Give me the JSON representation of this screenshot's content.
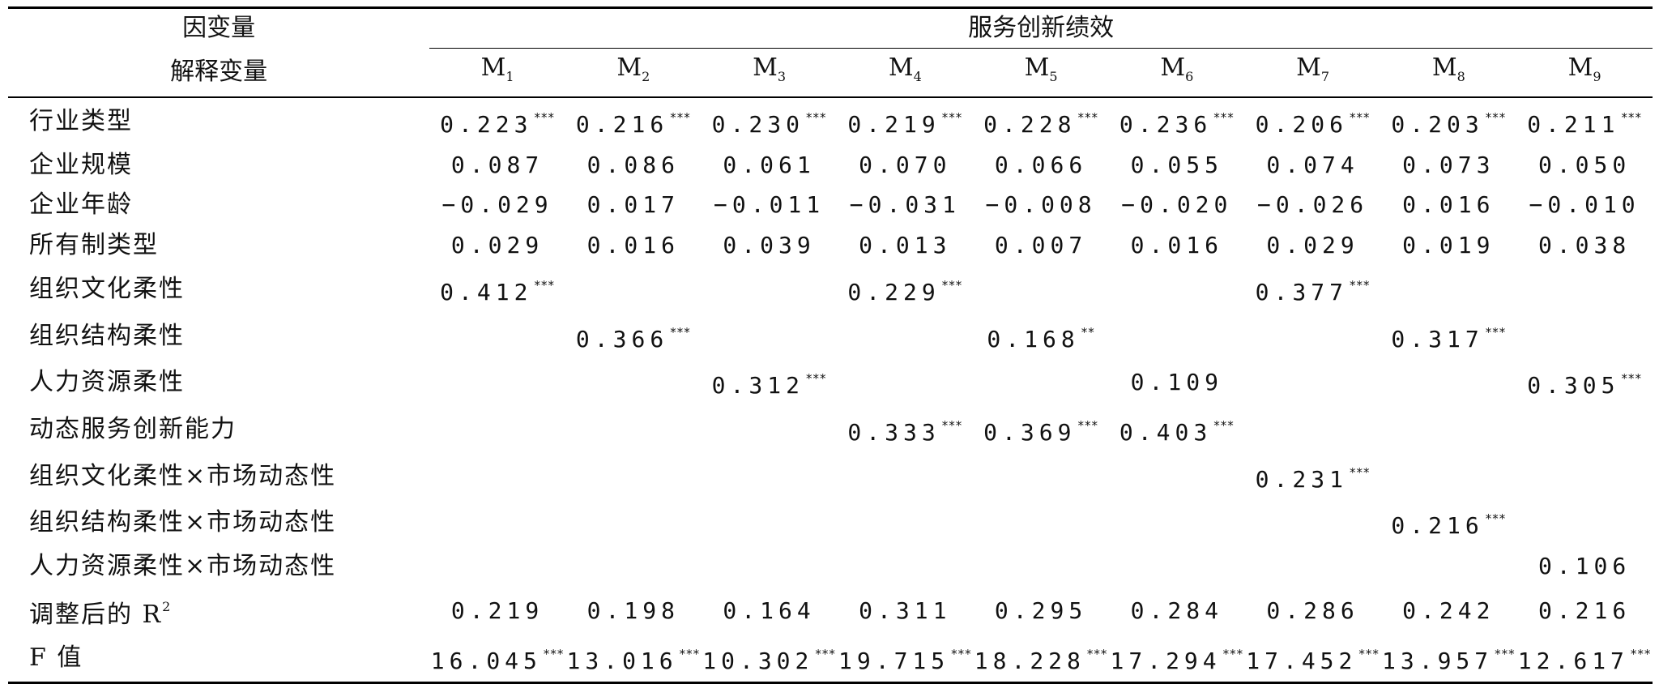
{
  "header": {
    "dependent_label": "因变量",
    "dependent_value": "服务创新绩效",
    "explanatory_label": "解释变量",
    "models": [
      {
        "name": "M",
        "sub": "1"
      },
      {
        "name": "M",
        "sub": "2"
      },
      {
        "name": "M",
        "sub": "3"
      },
      {
        "name": "M",
        "sub": "4"
      },
      {
        "name": "M",
        "sub": "5"
      },
      {
        "name": "M",
        "sub": "6"
      },
      {
        "name": "M",
        "sub": "7"
      },
      {
        "name": "M",
        "sub": "8"
      },
      {
        "name": "M",
        "sub": "9"
      }
    ]
  },
  "rows": [
    {
      "label": "行业类型",
      "cells": [
        {
          "v": "0.223",
          "sig": "***"
        },
        {
          "v": "0.216",
          "sig": "***"
        },
        {
          "v": "0.230",
          "sig": "***"
        },
        {
          "v": "0.219",
          "sig": "***"
        },
        {
          "v": "0.228",
          "sig": "***"
        },
        {
          "v": "0.236",
          "sig": "***"
        },
        {
          "v": "0.206",
          "sig": "***"
        },
        {
          "v": "0.203",
          "sig": "***"
        },
        {
          "v": "0.211",
          "sig": "***"
        }
      ]
    },
    {
      "label": "企业规模",
      "cells": [
        {
          "v": "0.087",
          "sig": ""
        },
        {
          "v": "0.086",
          "sig": ""
        },
        {
          "v": "0.061",
          "sig": ""
        },
        {
          "v": "0.070",
          "sig": ""
        },
        {
          "v": "0.066",
          "sig": ""
        },
        {
          "v": "0.055",
          "sig": ""
        },
        {
          "v": "0.074",
          "sig": ""
        },
        {
          "v": "0.073",
          "sig": ""
        },
        {
          "v": "0.050",
          "sig": ""
        }
      ]
    },
    {
      "label": "企业年龄",
      "cells": [
        {
          "v": "−0.029",
          "sig": ""
        },
        {
          "v": "0.017",
          "sig": ""
        },
        {
          "v": "−0.011",
          "sig": ""
        },
        {
          "v": "−0.031",
          "sig": ""
        },
        {
          "v": "−0.008",
          "sig": ""
        },
        {
          "v": "−0.020",
          "sig": ""
        },
        {
          "v": "−0.026",
          "sig": ""
        },
        {
          "v": "0.016",
          "sig": ""
        },
        {
          "v": "−0.010",
          "sig": ""
        }
      ]
    },
    {
      "label": "所有制类型",
      "cells": [
        {
          "v": "0.029",
          "sig": ""
        },
        {
          "v": "0.016",
          "sig": ""
        },
        {
          "v": "0.039",
          "sig": ""
        },
        {
          "v": "0.013",
          "sig": ""
        },
        {
          "v": "0.007",
          "sig": ""
        },
        {
          "v": "0.016",
          "sig": ""
        },
        {
          "v": "0.029",
          "sig": ""
        },
        {
          "v": "0.019",
          "sig": ""
        },
        {
          "v": "0.038",
          "sig": ""
        }
      ]
    },
    {
      "label": "组织文化柔性",
      "cells": [
        {
          "v": "0.412",
          "sig": "***"
        },
        {
          "v": "",
          "sig": ""
        },
        {
          "v": "",
          "sig": ""
        },
        {
          "v": "0.229",
          "sig": "***"
        },
        {
          "v": "",
          "sig": ""
        },
        {
          "v": "",
          "sig": ""
        },
        {
          "v": "0.377",
          "sig": "***"
        },
        {
          "v": "",
          "sig": ""
        },
        {
          "v": "",
          "sig": ""
        }
      ]
    },
    {
      "label": "组织结构柔性",
      "cells": [
        {
          "v": "",
          "sig": ""
        },
        {
          "v": "0.366",
          "sig": "***"
        },
        {
          "v": "",
          "sig": ""
        },
        {
          "v": "",
          "sig": ""
        },
        {
          "v": "0.168",
          "sig": "**"
        },
        {
          "v": "",
          "sig": ""
        },
        {
          "v": "",
          "sig": ""
        },
        {
          "v": "0.317",
          "sig": "***"
        },
        {
          "v": "",
          "sig": ""
        }
      ]
    },
    {
      "label": "人力资源柔性",
      "cells": [
        {
          "v": "",
          "sig": ""
        },
        {
          "v": "",
          "sig": ""
        },
        {
          "v": "0.312",
          "sig": "***"
        },
        {
          "v": "",
          "sig": ""
        },
        {
          "v": "",
          "sig": ""
        },
        {
          "v": "0.109",
          "sig": ""
        },
        {
          "v": "",
          "sig": ""
        },
        {
          "v": "",
          "sig": ""
        },
        {
          "v": "0.305",
          "sig": "***"
        }
      ]
    },
    {
      "label": "动态服务创新能力",
      "cells": [
        {
          "v": "",
          "sig": ""
        },
        {
          "v": "",
          "sig": ""
        },
        {
          "v": "",
          "sig": ""
        },
        {
          "v": "0.333",
          "sig": "***"
        },
        {
          "v": "0.369",
          "sig": "***"
        },
        {
          "v": "0.403",
          "sig": "***"
        },
        {
          "v": "",
          "sig": ""
        },
        {
          "v": "",
          "sig": ""
        },
        {
          "v": "",
          "sig": ""
        }
      ]
    },
    {
      "label": "组织文化柔性×市场动态性",
      "cells": [
        {
          "v": "",
          "sig": ""
        },
        {
          "v": "",
          "sig": ""
        },
        {
          "v": "",
          "sig": ""
        },
        {
          "v": "",
          "sig": ""
        },
        {
          "v": "",
          "sig": ""
        },
        {
          "v": "",
          "sig": ""
        },
        {
          "v": "0.231",
          "sig": "***"
        },
        {
          "v": "",
          "sig": ""
        },
        {
          "v": "",
          "sig": ""
        }
      ]
    },
    {
      "label": "组织结构柔性×市场动态性",
      "cells": [
        {
          "v": "",
          "sig": ""
        },
        {
          "v": "",
          "sig": ""
        },
        {
          "v": "",
          "sig": ""
        },
        {
          "v": "",
          "sig": ""
        },
        {
          "v": "",
          "sig": ""
        },
        {
          "v": "",
          "sig": ""
        },
        {
          "v": "",
          "sig": ""
        },
        {
          "v": "0.216",
          "sig": "***"
        },
        {
          "v": "",
          "sig": ""
        }
      ]
    },
    {
      "label": "人力资源柔性×市场动态性",
      "cells": [
        {
          "v": "",
          "sig": ""
        },
        {
          "v": "",
          "sig": ""
        },
        {
          "v": "",
          "sig": ""
        },
        {
          "v": "",
          "sig": ""
        },
        {
          "v": "",
          "sig": ""
        },
        {
          "v": "",
          "sig": ""
        },
        {
          "v": "",
          "sig": ""
        },
        {
          "v": "",
          "sig": ""
        },
        {
          "v": "0.106",
          "sig": ""
        }
      ]
    },
    {
      "label": "调整后的 R",
      "label_sup": "2",
      "cells": [
        {
          "v": "0.219",
          "sig": ""
        },
        {
          "v": "0.198",
          "sig": ""
        },
        {
          "v": "0.164",
          "sig": ""
        },
        {
          "v": "0.311",
          "sig": ""
        },
        {
          "v": "0.295",
          "sig": ""
        },
        {
          "v": "0.284",
          "sig": ""
        },
        {
          "v": "0.286",
          "sig": ""
        },
        {
          "v": "0.242",
          "sig": ""
        },
        {
          "v": "0.216",
          "sig": ""
        }
      ]
    },
    {
      "label": "F 值",
      "cells": [
        {
          "v": "16.045",
          "sig": "***"
        },
        {
          "v": "13.016",
          "sig": "***"
        },
        {
          "v": "10.302",
          "sig": "***"
        },
        {
          "v": "19.715",
          "sig": "***"
        },
        {
          "v": "18.228",
          "sig": "***"
        },
        {
          "v": "17.294",
          "sig": "***"
        },
        {
          "v": "17.452",
          "sig": "***"
        },
        {
          "v": "13.957",
          "sig": "***"
        },
        {
          "v": "12.617",
          "sig": "***"
        }
      ]
    }
  ]
}
